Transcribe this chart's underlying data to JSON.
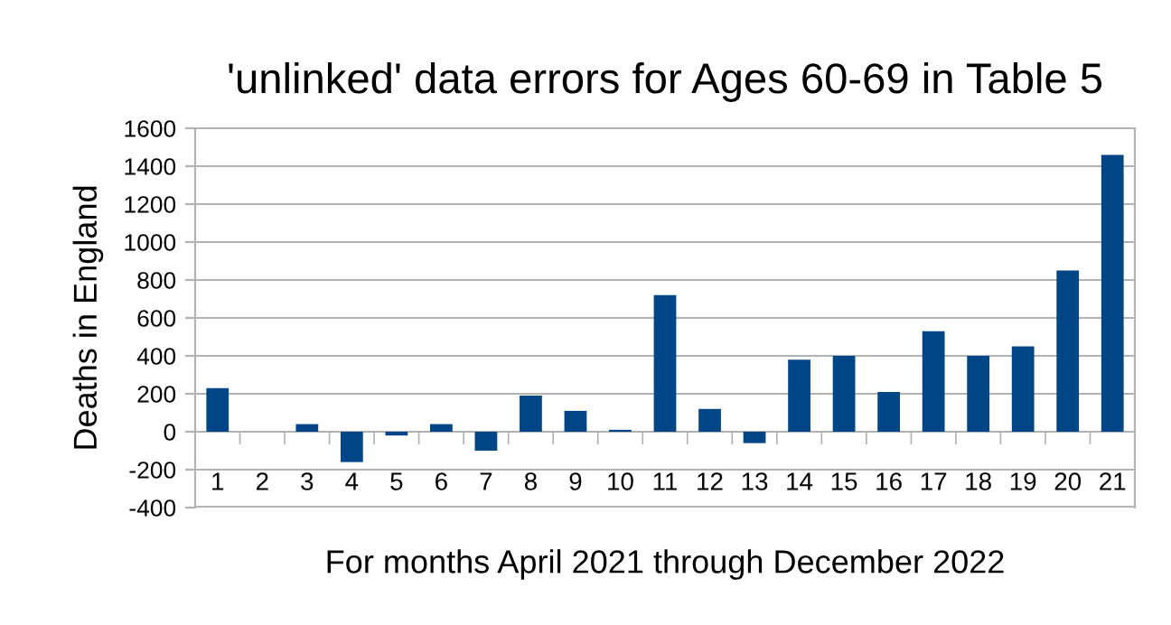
{
  "chart_data": {
    "type": "bar",
    "title": "'unlinked' data errors for Ages 60-69 in Table 5",
    "xlabel": "For months April 2021 through December 2022",
    "ylabel": "Deaths in England",
    "categories": [
      "1",
      "2",
      "3",
      "4",
      "5",
      "6",
      "7",
      "8",
      "9",
      "10",
      "11",
      "12",
      "13",
      "14",
      "15",
      "16",
      "17",
      "18",
      "19",
      "20",
      "21"
    ],
    "values": [
      230,
      0,
      40,
      -160,
      -20,
      40,
      -100,
      190,
      110,
      10,
      720,
      120,
      -60,
      380,
      400,
      210,
      530,
      400,
      450,
      850,
      1460
    ],
    "color": "#004586",
    "ylim": [
      -400,
      1600
    ],
    "yticks": [
      -400,
      -200,
      0,
      200,
      400,
      600,
      800,
      1000,
      1200,
      1400,
      1600
    ],
    "grid": "y",
    "legend": false
  }
}
